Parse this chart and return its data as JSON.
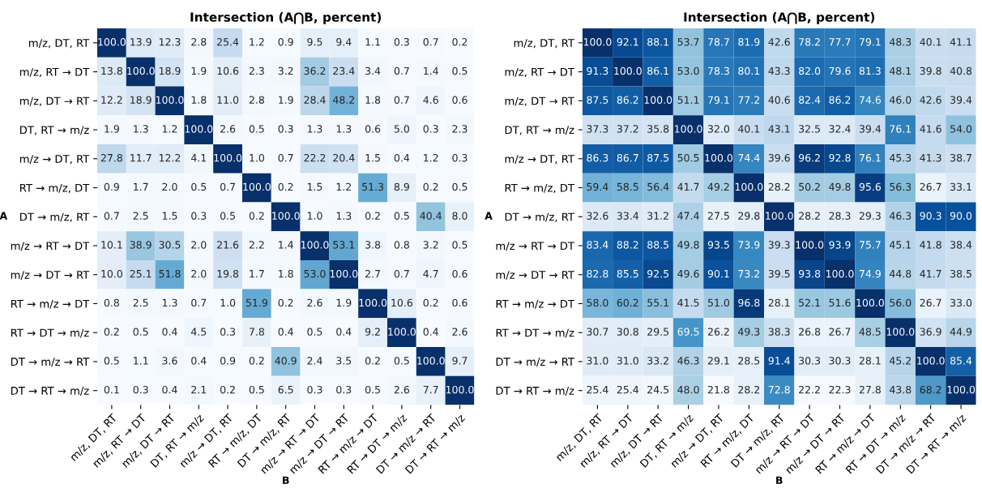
{
  "chart_data": [
    {
      "type": "heatmap",
      "title": "Intersection (A⋂B, percent)",
      "xlabel": "B",
      "ylabel": "A",
      "categories": [
        "m/z, DT, RT",
        "m/z, RT → DT",
        "m/z, DT → RT",
        "DT, RT → m/z",
        "m/z → DT, RT",
        "RT → m/z, DT",
        "DT → m/z, RT",
        "m/z → RT → DT",
        "m/z → DT → RT",
        "RT → m/z → DT",
        "RT → DT → m/z",
        "DT → m/z → RT",
        "DT → RT → m/z"
      ],
      "y_categories": [
        "m/z, DT, RT",
        "m/z, RT → DT",
        "m/z, DT → RT",
        "DT, RT → m/z",
        "m/z → DT, RT",
        "RT → m/z, DT",
        "DT → m/z, RT",
        "m/z → RT → DT",
        "m/z → DT → RT",
        "RT → m/z → DT",
        "RT → DT → m/z",
        "DT → m/z → RT",
        "DT → RT → m/z"
      ],
      "cells": [
        [
          100.0,
          13.9,
          12.3,
          2.8,
          25.4,
          1.2,
          0.9,
          9.5,
          9.4,
          1.1,
          0.3,
          0.7,
          0.2
        ],
        [
          13.8,
          100.0,
          18.9,
          1.9,
          10.6,
          2.3,
          3.2,
          36.2,
          23.4,
          3.4,
          0.7,
          1.4,
          0.5
        ],
        [
          12.2,
          18.9,
          100.0,
          1.8,
          11.0,
          2.8,
          1.9,
          28.4,
          48.2,
          1.8,
          0.7,
          4.6,
          0.6
        ],
        [
          1.9,
          1.3,
          1.2,
          100.0,
          2.6,
          0.5,
          0.3,
          1.3,
          1.3,
          0.6,
          5.0,
          0.3,
          2.3
        ],
        [
          27.8,
          11.7,
          12.2,
          4.1,
          100.0,
          1.0,
          0.7,
          22.2,
          20.4,
          1.5,
          0.4,
          1.2,
          0.3
        ],
        [
          0.9,
          1.7,
          2.0,
          0.5,
          0.7,
          100.0,
          0.2,
          1.5,
          1.2,
          51.3,
          8.9,
          0.2,
          0.5
        ],
        [
          0.7,
          2.5,
          1.5,
          0.3,
          0.5,
          0.2,
          100.0,
          1.0,
          1.3,
          0.2,
          0.5,
          40.4,
          8.0
        ],
        [
          10.1,
          38.9,
          30.5,
          2.0,
          21.6,
          2.2,
          1.4,
          100.0,
          53.1,
          3.8,
          0.8,
          3.2,
          0.5
        ],
        [
          10.0,
          25.1,
          51.8,
          2.0,
          19.8,
          1.7,
          1.8,
          53.0,
          100.0,
          2.7,
          0.7,
          4.7,
          0.6
        ],
        [
          0.8,
          2.5,
          1.3,
          0.7,
          1.0,
          51.9,
          0.2,
          2.6,
          1.9,
          100.0,
          10.6,
          0.2,
          0.6
        ],
        [
          0.2,
          0.5,
          0.4,
          4.5,
          0.3,
          7.8,
          0.4,
          0.5,
          0.4,
          9.2,
          100.0,
          0.4,
          2.6
        ],
        [
          0.5,
          1.1,
          3.6,
          0.4,
          0.9,
          0.2,
          40.9,
          2.4,
          3.5,
          0.2,
          0.5,
          100.0,
          9.7
        ],
        [
          0.1,
          0.3,
          0.4,
          2.1,
          0.2,
          0.5,
          6.5,
          0.3,
          0.3,
          0.5,
          2.6,
          7.7,
          100.0
        ]
      ],
      "cell_labels": [
        [
          "100.0",
          "13.9",
          "12.3",
          "2.8",
          "25.4",
          "1.2",
          "0.9",
          "9.5",
          "9.4",
          "1.1",
          "0.3",
          "0.7",
          "0.2"
        ],
        [
          "13.8",
          "100.0",
          "18.9",
          "1.9",
          "10.6",
          "2.3",
          "3.2",
          "36.2",
          "23.4",
          "3.4",
          "0.7",
          "1.4",
          "0.5"
        ],
        [
          "12.2",
          "18.9",
          "100.0",
          "1.8",
          "11.0",
          "2.8",
          "1.9",
          "28.4",
          "48.2",
          "1.8",
          "0.7",
          "4.6",
          "0.6"
        ],
        [
          "1.9",
          "1.3",
          "1.2",
          "100.0",
          "2.6",
          "0.5",
          "0.3",
          "1.3",
          "1.3",
          "0.6",
          "5.0",
          "0.3",
          "2.3"
        ],
        [
          "27.8",
          "11.7",
          "12.2",
          "4.1",
          "100.0",
          "1.0",
          "0.7",
          "22.2",
          "20.4",
          "1.5",
          "0.4",
          "1.2",
          "0.3"
        ],
        [
          "0.9",
          "1.7",
          "2.0",
          "0.5",
          "0.7",
          "100.0",
          "0.2",
          "1.5",
          "1.2",
          "51.3",
          "8.9",
          "0.2",
          "0.5"
        ],
        [
          "0.7",
          "2.5",
          "1.5",
          "0.3",
          "0.5",
          "0.2",
          "100.0",
          "1.0",
          "1.3",
          "0.2",
          "0.5",
          "40.4",
          "8.0"
        ],
        [
          "10.1",
          "38.9",
          "30.5",
          "2.0",
          "21.6",
          "2.2",
          "1.4",
          "100.0",
          "53.1",
          "3.8",
          "0.8",
          "3.2",
          "0.5"
        ],
        [
          "10.0",
          "25.1",
          "51.8",
          "2.0",
          "19.8",
          "1.7",
          "1.8",
          "53.0",
          "100.0",
          "2.7",
          "0.7",
          "4.7",
          "0.6"
        ],
        [
          "0.8",
          "2.5",
          "1.3",
          "0.7",
          "1.0",
          "51.9",
          "0.2",
          "2.6",
          "1.9",
          "100.0",
          "10.6",
          "0.2",
          "0.6"
        ],
        [
          "0.2",
          "0.5",
          "0.4",
          "4.5",
          "0.3",
          "7.8",
          "0.4",
          "0.5",
          "0.4",
          "9.2",
          "100.0",
          "0.4",
          "2.6"
        ],
        [
          "0.5",
          "1.1",
          "3.6",
          "0.4",
          "0.9",
          "0.2",
          "40.9",
          "2.4",
          "3.5",
          "0.2",
          "0.5",
          "100.0",
          "9.7"
        ],
        [
          "0.1",
          "0.3",
          "0.4",
          "2.1",
          "0.2",
          "0.5",
          "6.5",
          "0.3",
          "0.3",
          "0.5",
          "2.6",
          "7.7",
          "100.0"
        ]
      ]
    },
    {
      "type": "heatmap",
      "title": "Intersection (A⋂B, percent)",
      "xlabel": "B",
      "ylabel": "A",
      "categories": [
        "m/z, DT, RT",
        "m/z, RT → DT",
        "m/z, DT → RT",
        "DT, RT → m/z",
        "m/z → DT, RT",
        "RT → m/z, DT",
        "DT → m/z, RT",
        "m/z → RT → DT",
        "m/z → DT → RT",
        "RT → m/z → DT",
        "RT → DT → m/z",
        "DT → m/z → RT",
        "DT → RT → m/z"
      ],
      "y_categories": [
        "m/z, DT, RT",
        "m/z, RT → DT",
        "m/z, DT → RT",
        "DT, RT → m/z",
        "m/z → DT, RT",
        "RT → m/z, DT",
        "DT → m/z, RT",
        "m/z → RT → DT",
        "m/z → DT → RT",
        "RT → m/z → DT",
        "RT → DT → m/z",
        "DT → m/z → RT",
        "DT → RT → m/z"
      ],
      "cells": [
        [
          100.0,
          92.1,
          88.1,
          53.7,
          78.7,
          81.9,
          42.6,
          78.2,
          77.7,
          79.1,
          48.3,
          40.1,
          41.1
        ],
        [
          91.3,
          100.0,
          86.1,
          53.0,
          78.3,
          80.1,
          43.3,
          82.0,
          79.6,
          81.3,
          48.1,
          39.8,
          40.8
        ],
        [
          87.5,
          86.2,
          100.0,
          51.1,
          79.1,
          77.2,
          40.6,
          82.4,
          86.2,
          74.6,
          46.0,
          42.6,
          39.4
        ],
        [
          37.3,
          37.2,
          35.8,
          100.0,
          32.0,
          40.1,
          43.1,
          32.5,
          32.4,
          39.4,
          76.1,
          41.6,
          54.0
        ],
        [
          86.3,
          86.7,
          87.5,
          50.5,
          100.0,
          74.4,
          39.6,
          96.2,
          92.8,
          76.1,
          45.3,
          41.3,
          38.7
        ],
        [
          59.4,
          58.5,
          56.4,
          41.7,
          49.2,
          100.0,
          28.2,
          50.2,
          49.8,
          95.6,
          56.3,
          26.7,
          33.1
        ],
        [
          32.6,
          33.4,
          31.2,
          47.4,
          27.5,
          29.8,
          100.0,
          28.2,
          28.3,
          29.3,
          46.3,
          90.3,
          90.0
        ],
        [
          83.4,
          88.2,
          88.5,
          49.8,
          93.5,
          73.9,
          39.3,
          100.0,
          93.9,
          75.7,
          45.1,
          41.8,
          38.4
        ],
        [
          82.8,
          85.5,
          92.5,
          49.6,
          90.1,
          73.2,
          39.5,
          93.8,
          100.0,
          74.9,
          44.8,
          41.7,
          38.5
        ],
        [
          58.0,
          60.2,
          55.1,
          41.5,
          51.0,
          96.8,
          28.1,
          52.1,
          51.6,
          100.0,
          56.0,
          26.7,
          33.0
        ],
        [
          30.7,
          30.8,
          29.5,
          69.5,
          26.2,
          49.3,
          38.3,
          26.8,
          26.7,
          48.5,
          100.0,
          36.9,
          44.9
        ],
        [
          31.0,
          31.0,
          33.2,
          46.3,
          29.1,
          28.5,
          91.4,
          30.3,
          30.3,
          28.1,
          45.2,
          100.0,
          85.4
        ],
        [
          25.4,
          25.4,
          24.5,
          48.0,
          21.8,
          28.2,
          72.8,
          22.2,
          22.3,
          27.8,
          43.8,
          68.2,
          100.0
        ]
      ],
      "cell_labels": [
        [
          "100.0",
          "92.1",
          "88.1",
          "53.7",
          "78.7",
          "81.9",
          "42.6",
          "78.2",
          "77.7",
          "79.1",
          "48.3",
          "40.1",
          "41.1"
        ],
        [
          "91.3",
          "100.0",
          "86.1",
          "53.0",
          "78.3",
          "80.1",
          "43.3",
          "82.0",
          "79.6",
          "81.3",
          "48.1",
          "39.8",
          "40.8"
        ],
        [
          "87.5",
          "86.2",
          "100.0",
          "51.1",
          "79.1",
          "77.2",
          "40.6",
          "82.4",
          "86.2",
          "74.6",
          "46.0",
          "42.6",
          "39.4"
        ],
        [
          "37.3",
          "37.2",
          "35.8",
          "100.0",
          "32.0",
          "40.1",
          "43.1",
          "32.5",
          "32.4",
          "39.4",
          "76.1",
          "41.6",
          "54.0"
        ],
        [
          "86.3",
          "86.7",
          "87.5",
          "50.5",
          "100.0",
          "74.4",
          "39.6",
          "96.2",
          "92.8",
          "76.1",
          "45.3",
          "41.3",
          "38.7"
        ],
        [
          "59.4",
          "58.5",
          "56.4",
          "41.7",
          "49.2",
          "100.0",
          "28.2",
          "50.2",
          "49.8",
          "95.6",
          "56.3",
          "26.7",
          "33.1"
        ],
        [
          "32.6",
          "33.4",
          "31.2",
          "47.4",
          "27.5",
          "29.8",
          "100.0",
          "28.2",
          "28.3",
          "29.3",
          "46.3",
          "90.3",
          "90.0"
        ],
        [
          "83.4",
          "88.2",
          "88.5",
          "49.8",
          "93.5",
          "73.9",
          "39.3",
          "100.0",
          "93.9",
          "75.7",
          "45.1",
          "41.8",
          "38.4"
        ],
        [
          "82.8",
          "85.5",
          "92.5",
          "49.6",
          "90.1",
          "73.2",
          "39.5",
          "93.8",
          "100.0",
          "74.9",
          "44.8",
          "41.7",
          "38.5"
        ],
        [
          "58.0",
          "60.2",
          "55.1",
          "41.5",
          "51.0",
          "96.8",
          "28.1",
          "52.1",
          "51.6",
          "100.0",
          "56.0",
          "26.7",
          "33.0"
        ],
        [
          "30.7",
          "30.8",
          "29.5",
          "69.5",
          "26.2",
          "49.3",
          "38.3",
          "26.8",
          "26.7",
          "48.5",
          "100.0",
          "36.9",
          "44.9"
        ],
        [
          "31.0",
          "31.0",
          "33.2",
          "46.3",
          "29.1",
          "28.5",
          "91.4",
          "30.3",
          "30.3",
          "28.1",
          "45.2",
          "100.0",
          "85.4"
        ],
        [
          "25.4",
          "25.4",
          "24.5",
          "48.0",
          "21.8",
          "28.2",
          "72.8",
          "22.2",
          "22.3",
          "27.8",
          "43.8",
          "68.2",
          "100.0"
        ]
      ]
    }
  ]
}
